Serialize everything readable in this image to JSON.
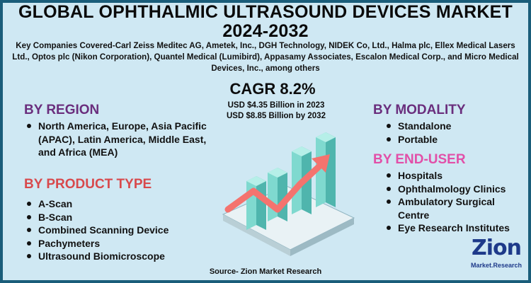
{
  "title": {
    "line1": "GLOBAL OPHTHALMIC ULTRASOUND DEVICES MARKET",
    "line2": "2024-2032"
  },
  "companies": {
    "text": "Key Companies Covered-Carl Zeiss Meditec AG, Ametek, Inc., DGH Technology, NIDEK Co, Ltd., Halma plc, Ellex Medical Lasers Ltd., Optos plc (Nikon Corporation), Quantel Medical (Lumibird), Appasamy Associates, Escalon Medical Corp., and Micro Medical Devices, Inc., among others"
  },
  "stats": {
    "cagr": "CAGR 8.2%",
    "usd_2023": "USD $4.35 Billion  in 2023",
    "usd_2032": "USD $8.85 Billion  by 2032"
  },
  "region": {
    "heading": "BY REGION",
    "items": [
      "North America, Europe, Asia Pacific (APAC), Latin America, Middle East, and Africa (MEA)"
    ]
  },
  "product_type": {
    "heading": "BY PRODUCT TYPE",
    "items": [
      "A-Scan",
      "B-Scan",
      "Combined Scanning Device",
      "Pachymeters",
      "Ultrasound Biomicroscope"
    ]
  },
  "modality": {
    "heading": "BY MODALITY",
    "items": [
      "Standalone",
      "Portable"
    ]
  },
  "end_user": {
    "heading": "BY  END-USER",
    "items": [
      "Hospitals",
      "Ophthalmology Clinics",
      "Ambulatory Surgical Centre",
      "Eye Research Institutes"
    ]
  },
  "source": "Source- Zion Market Research",
  "logo": {
    "word": "Zion",
    "sub": "Market.Research"
  },
  "colors": {
    "background": "#cfe8f3",
    "frame": "#1a5d7a",
    "heading_purple": "#6a2e7d",
    "heading_red": "#d8494c",
    "heading_pink": "#e24fa8",
    "bar_teal": "#7fd9cf",
    "arrow_red": "#f4736e"
  }
}
